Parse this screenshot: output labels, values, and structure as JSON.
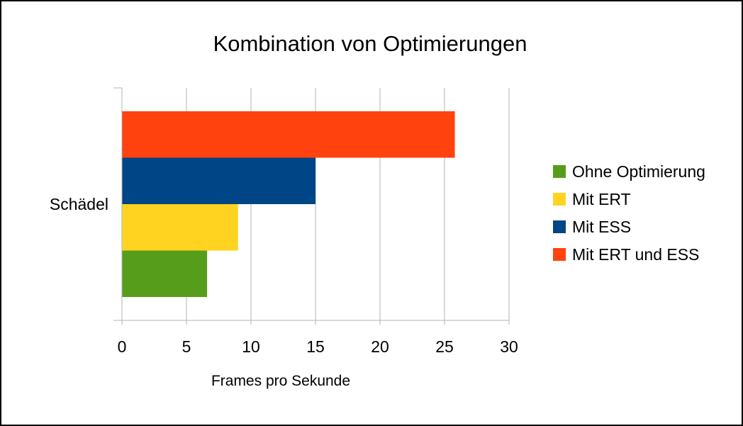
{
  "chart_data": {
    "type": "bar",
    "orientation": "horizontal",
    "title": "Kombination von Optimierungen",
    "xlabel": "Frames pro Sekunde",
    "ylabel": "",
    "categories": [
      "Schädel"
    ],
    "series": [
      {
        "name": "Ohne Optimierung",
        "values": [
          6.6
        ],
        "color": "#579d1c"
      },
      {
        "name": "Mit ERT",
        "values": [
          9.0
        ],
        "color": "#ffd320"
      },
      {
        "name": "Mit ESS",
        "values": [
          15.0
        ],
        "color": "#004586"
      },
      {
        "name": "Mit ERT und ESS",
        "values": [
          25.8
        ],
        "color": "#ff420e"
      }
    ],
    "xlim": [
      0,
      30
    ],
    "xticks": [
      "0",
      "5",
      "10",
      "15",
      "20",
      "25",
      "30"
    ],
    "grid": true,
    "legend_position": "right"
  }
}
